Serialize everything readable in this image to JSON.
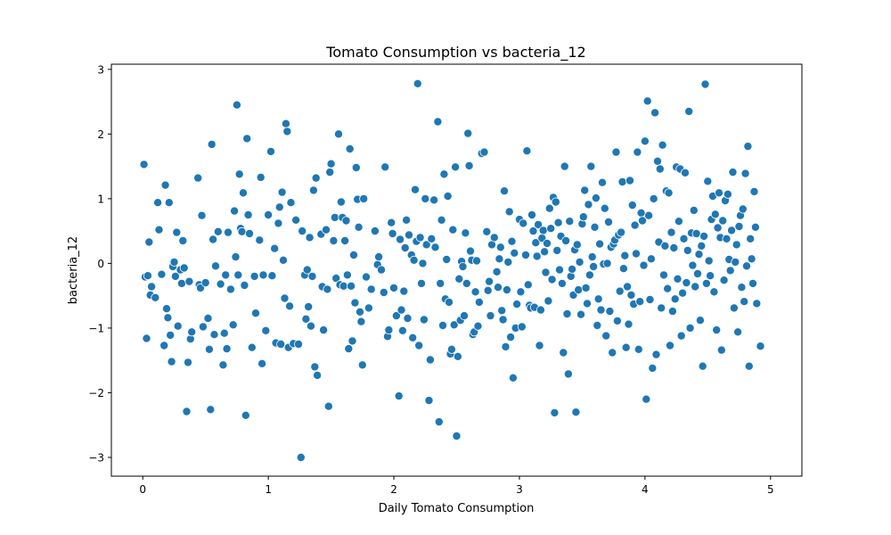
{
  "chart_data": {
    "type": "scatter",
    "title": "Tomato Consumption vs bacteria_12",
    "xlabel": "Daily Tomato Consumption",
    "ylabel": "bacteria_12",
    "xlim": [
      -0.25,
      5.25
    ],
    "ylim": [
      -3.29,
      3.08
    ],
    "xticks": [
      0,
      1,
      2,
      3,
      4,
      5
    ],
    "yticks": [
      -3,
      -2,
      -1,
      0,
      1,
      2,
      3
    ],
    "xtick_labels": [
      "0",
      "1",
      "2",
      "3",
      "4",
      "5"
    ],
    "ytick_labels": [
      "−3",
      "−2",
      "−1",
      "0",
      "1",
      "2",
      "3"
    ],
    "grid": false,
    "point_color": "#1f77b4",
    "point_edge_color": "#ffffff",
    "points": [
      [
        0.01,
        1.53
      ],
      [
        0.02,
        -0.21
      ],
      [
        0.03,
        -1.16
      ],
      [
        0.04,
        -0.19
      ],
      [
        0.05,
        0.33
      ],
      [
        0.06,
        -0.49
      ],
      [
        0.07,
        -0.36
      ],
      [
        0.1,
        -0.53
      ],
      [
        0.12,
        0.94
      ],
      [
        0.13,
        0.52
      ],
      [
        0.15,
        -0.17
      ],
      [
        0.17,
        -1.27
      ],
      [
        0.18,
        1.21
      ],
      [
        0.19,
        -0.7
      ],
      [
        0.2,
        -0.84
      ],
      [
        0.21,
        0.94
      ],
      [
        0.22,
        -1.11
      ],
      [
        0.23,
        -1.52
      ],
      [
        0.24,
        -0.05
      ],
      [
        0.25,
        0.02
      ],
      [
        0.26,
        -0.2
      ],
      [
        0.27,
        0.48
      ],
      [
        0.28,
        -0.97
      ],
      [
        0.3,
        -0.1
      ],
      [
        0.31,
        -0.31
      ],
      [
        0.32,
        0.35
      ],
      [
        0.33,
        -0.07
      ],
      [
        0.35,
        -2.29
      ],
      [
        0.36,
        -1.53
      ],
      [
        0.37,
        -0.28
      ],
      [
        0.38,
        -1.17
      ],
      [
        0.39,
        -1.06
      ],
      [
        0.44,
        1.32
      ],
      [
        0.45,
        -0.33
      ],
      [
        0.46,
        -0.38
      ],
      [
        0.47,
        0.74
      ],
      [
        0.48,
        -0.98
      ],
      [
        0.5,
        -0.3
      ],
      [
        0.52,
        -0.85
      ],
      [
        0.53,
        -1.33
      ],
      [
        0.54,
        -2.26
      ],
      [
        0.55,
        1.84
      ],
      [
        0.56,
        0.37
      ],
      [
        0.57,
        -1.1
      ],
      [
        0.58,
        -0.04
      ],
      [
        0.6,
        0.49
      ],
      [
        0.62,
        -0.32
      ],
      [
        0.64,
        -1.57
      ],
      [
        0.65,
        -1.08
      ],
      [
        0.66,
        -0.18
      ],
      [
        0.67,
        -1.32
      ],
      [
        0.68,
        0.48
      ],
      [
        0.7,
        -0.4
      ],
      [
        0.72,
        -0.95
      ],
      [
        0.73,
        0.81
      ],
      [
        0.74,
        0.1
      ],
      [
        0.75,
        2.45
      ],
      [
        0.76,
        -0.18
      ],
      [
        0.77,
        1.38
      ],
      [
        0.78,
        0.54
      ],
      [
        0.79,
        0.49
      ],
      [
        0.8,
        1.09
      ],
      [
        0.81,
        -0.34
      ],
      [
        0.82,
        -2.35
      ],
      [
        0.83,
        1.93
      ],
      [
        0.84,
        0.75
      ],
      [
        0.85,
        0.46
      ],
      [
        0.87,
        -1.3
      ],
      [
        0.89,
        -0.2
      ],
      [
        0.9,
        -0.77
      ],
      [
        0.93,
        0.36
      ],
      [
        0.94,
        1.33
      ],
      [
        0.95,
        -1.55
      ],
      [
        0.96,
        -0.18
      ],
      [
        0.98,
        -1.04
      ],
      [
        1.0,
        0.75
      ],
      [
        1.02,
        1.73
      ],
      [
        1.03,
        -0.19
      ],
      [
        1.05,
        0.23
      ],
      [
        1.06,
        -1.23
      ],
      [
        1.08,
        0.62
      ],
      [
        1.09,
        0.87
      ],
      [
        1.1,
        -1.25
      ],
      [
        1.11,
        1.1
      ],
      [
        1.12,
        0.05
      ],
      [
        1.13,
        -0.54
      ],
      [
        1.14,
        2.16
      ],
      [
        1.15,
        2.04
      ],
      [
        1.16,
        -1.3
      ],
      [
        1.17,
        -0.66
      ],
      [
        1.18,
        0.94
      ],
      [
        1.2,
        -1.24
      ],
      [
        1.22,
        0.67
      ],
      [
        1.24,
        -1.25
      ],
      [
        1.26,
        -3.0
      ],
      [
        1.27,
        0.5
      ],
      [
        1.29,
        -0.18
      ],
      [
        1.3,
        -0.86
      ],
      [
        1.31,
        -0.1
      ],
      [
        1.32,
        -0.67
      ],
      [
        1.33,
        0.4
      ],
      [
        1.34,
        -0.97
      ],
      [
        1.35,
        -0.2
      ],
      [
        1.36,
        1.13
      ],
      [
        1.37,
        -1.6
      ],
      [
        1.38,
        1.32
      ],
      [
        1.39,
        -1.73
      ],
      [
        1.42,
        0.45
      ],
      [
        1.43,
        -0.36
      ],
      [
        1.44,
        -1.03
      ],
      [
        1.46,
        0.52
      ],
      [
        1.47,
        -0.4
      ],
      [
        1.48,
        -2.21
      ],
      [
        1.49,
        1.41
      ],
      [
        1.5,
        1.54
      ],
      [
        1.52,
        0.35
      ],
      [
        1.53,
        0.71
      ],
      [
        1.54,
        -0.23
      ],
      [
        1.56,
        2.0
      ],
      [
        1.57,
        -0.33
      ],
      [
        1.58,
        0.95
      ],
      [
        1.59,
        0.71
      ],
      [
        1.6,
        -0.35
      ],
      [
        1.61,
        0.35
      ],
      [
        1.62,
        0.66
      ],
      [
        1.63,
        -0.18
      ],
      [
        1.64,
        -1.32
      ],
      [
        1.65,
        1.77
      ],
      [
        1.66,
        -0.35
      ],
      [
        1.67,
        -1.2
      ],
      [
        1.68,
        0.13
      ],
      [
        1.69,
        -0.61
      ],
      [
        1.7,
        1.48
      ],
      [
        1.71,
        0.99
      ],
      [
        1.72,
        0.56
      ],
      [
        1.73,
        -0.75
      ],
      [
        1.74,
        -0.9
      ],
      [
        1.75,
        -1.57
      ],
      [
        1.76,
        1.0
      ],
      [
        1.78,
        -0.21
      ],
      [
        1.8,
        -0.69
      ],
      [
        1.82,
        -0.4
      ],
      [
        1.85,
        0.5
      ],
      [
        1.87,
        -0.02
      ],
      [
        1.88,
        0.1
      ],
      [
        1.9,
        -0.1
      ],
      [
        1.92,
        -0.45
      ],
      [
        1.93,
        1.49
      ],
      [
        1.95,
        -1.13
      ],
      [
        1.96,
        -1.03
      ],
      [
        1.98,
        0.63
      ],
      [
        1.99,
        0.46
      ],
      [
        2.0,
        -0.38
      ],
      [
        2.02,
        -0.81
      ],
      [
        2.04,
        -2.05
      ],
      [
        2.05,
        0.37
      ],
      [
        2.06,
        -0.72
      ],
      [
        2.07,
        -1.04
      ],
      [
        2.08,
        -0.43
      ],
      [
        2.09,
        0.24
      ],
      [
        2.1,
        0.67
      ],
      [
        2.11,
        -0.85
      ],
      [
        2.12,
        0.44
      ],
      [
        2.14,
        0.13
      ],
      [
        2.15,
        -1.15
      ],
      [
        2.16,
        0.05
      ],
      [
        2.17,
        1.14
      ],
      [
        2.18,
        0.34
      ],
      [
        2.19,
        2.78
      ],
      [
        2.2,
        -1.27
      ],
      [
        2.21,
        0.4
      ],
      [
        2.22,
        -0.31
      ],
      [
        2.23,
        0.0
      ],
      [
        2.24,
        -0.87
      ],
      [
        2.25,
        1.0
      ],
      [
        2.26,
        0.29
      ],
      [
        2.28,
        -2.12
      ],
      [
        2.29,
        -1.49
      ],
      [
        2.3,
        0.38
      ],
      [
        2.32,
        0.98
      ],
      [
        2.33,
        0.25
      ],
      [
        2.35,
        2.19
      ],
      [
        2.36,
        -2.45
      ],
      [
        2.37,
        -0.31
      ],
      [
        2.38,
        0.67
      ],
      [
        2.39,
        -0.96
      ],
      [
        2.4,
        1.38
      ],
      [
        2.41,
        -0.55
      ],
      [
        2.42,
        0.06
      ],
      [
        2.43,
        1.04
      ],
      [
        2.44,
        -0.6
      ],
      [
        2.45,
        -1.4
      ],
      [
        2.46,
        -1.33
      ],
      [
        2.47,
        0.52
      ],
      [
        2.48,
        -0.95
      ],
      [
        2.49,
        1.49
      ],
      [
        2.5,
        -2.67
      ],
      [
        2.51,
        -1.44
      ],
      [
        2.52,
        -0.24
      ],
      [
        2.53,
        -0.88
      ],
      [
        2.54,
        0.03
      ],
      [
        2.55,
        -0.05
      ],
      [
        2.56,
        -0.81
      ],
      [
        2.57,
        0.47
      ],
      [
        2.58,
        -0.31
      ],
      [
        2.59,
        2.01
      ],
      [
        2.6,
        1.51
      ],
      [
        2.61,
        0.19
      ],
      [
        2.62,
        0.05
      ],
      [
        2.63,
        -1.1
      ],
      [
        2.64,
        -1.06
      ],
      [
        2.65,
        -0.44
      ],
      [
        2.66,
        0.04
      ],
      [
        2.67,
        -0.97
      ],
      [
        2.68,
        -0.6
      ],
      [
        2.7,
        1.7
      ],
      [
        2.72,
        1.72
      ],
      [
        2.74,
        0.49
      ],
      [
        2.75,
        -0.42
      ],
      [
        2.76,
        -0.28
      ],
      [
        2.77,
        -0.81
      ],
      [
        2.78,
        0.29
      ],
      [
        2.8,
        0.4
      ],
      [
        2.82,
        -0.13
      ],
      [
        2.83,
        -0.37
      ],
      [
        2.84,
        0.07
      ],
      [
        2.85,
        0.25
      ],
      [
        2.86,
        -0.73
      ],
      [
        2.87,
        -0.87
      ],
      [
        2.88,
        1.12
      ],
      [
        2.89,
        -1.29
      ],
      [
        2.9,
        -0.41
      ],
      [
        2.91,
        0.02
      ],
      [
        2.92,
        0.8
      ],
      [
        2.93,
        -1.14
      ],
      [
        2.94,
        0.34
      ],
      [
        2.95,
        -1.77
      ],
      [
        2.96,
        0.16
      ],
      [
        2.97,
        -1.0
      ],
      [
        2.98,
        -0.63
      ],
      [
        3.0,
        0.68
      ],
      [
        3.01,
        -0.44
      ],
      [
        3.02,
        -0.98
      ],
      [
        3.03,
        0.62
      ],
      [
        3.05,
        0.13
      ],
      [
        3.06,
        1.74
      ],
      [
        3.07,
        -0.33
      ],
      [
        3.08,
        -0.65
      ],
      [
        3.09,
        -0.69
      ],
      [
        3.1,
        0.75
      ],
      [
        3.11,
        0.5
      ],
      [
        3.12,
        -0.68
      ],
      [
        3.13,
        0.32
      ],
      [
        3.14,
        0.11
      ],
      [
        3.15,
        0.6
      ],
      [
        3.16,
        -1.27
      ],
      [
        3.17,
        -0.72
      ],
      [
        3.18,
        0.39
      ],
      [
        3.19,
        0.51
      ],
      [
        3.2,
        0.18
      ],
      [
        3.21,
        -0.14
      ],
      [
        3.22,
        0.31
      ],
      [
        3.23,
        -0.58
      ],
      [
        3.24,
        0.85
      ],
      [
        3.25,
        0.54
      ],
      [
        3.26,
        -0.25
      ],
      [
        3.27,
        1.02
      ],
      [
        3.28,
        -2.31
      ],
      [
        3.29,
        0.95
      ],
      [
        3.3,
        0.2
      ],
      [
        3.31,
        0.63
      ],
      [
        3.32,
        -0.1
      ],
      [
        3.33,
        0.42
      ],
      [
        3.34,
        -0.31
      ],
      [
        3.35,
        -1.38
      ],
      [
        3.36,
        1.5
      ],
      [
        3.37,
        0.35
      ],
      [
        3.38,
        -0.78
      ],
      [
        3.39,
        -1.71
      ],
      [
        3.4,
        0.65
      ],
      [
        3.41,
        -0.2
      ],
      [
        3.42,
        -0.09
      ],
      [
        3.43,
        -0.49
      ],
      [
        3.44,
        0.21
      ],
      [
        3.45,
        -2.3
      ],
      [
        3.46,
        0.29
      ],
      [
        3.47,
        -0.41
      ],
      [
        3.48,
        0.02
      ],
      [
        3.49,
        -0.79
      ],
      [
        3.5,
        0.61
      ],
      [
        3.51,
        0.72
      ],
      [
        3.52,
        1.13
      ],
      [
        3.53,
        -0.38
      ],
      [
        3.54,
        -0.62
      ],
      [
        3.55,
        0.91
      ],
      [
        3.56,
        -0.18
      ],
      [
        3.57,
        1.5
      ],
      [
        3.58,
        0.1
      ],
      [
        3.59,
        -0.05
      ],
      [
        3.6,
        0.56
      ],
      [
        3.61,
        1.01
      ],
      [
        3.62,
        -0.96
      ],
      [
        3.63,
        -0.55
      ],
      [
        3.64,
        0.3
      ],
      [
        3.65,
        -0.72
      ],
      [
        3.66,
        1.25
      ],
      [
        3.67,
        -0.01
      ],
      [
        3.68,
        0.85
      ],
      [
        3.69,
        -1.12
      ],
      [
        3.7,
        0.0
      ],
      [
        3.71,
        0.64
      ],
      [
        3.72,
        -0.74
      ],
      [
        3.73,
        0.25
      ],
      [
        3.74,
        -1.38
      ],
      [
        3.75,
        0.3
      ],
      [
        3.76,
        0.36
      ],
      [
        3.77,
        1.72
      ],
      [
        3.78,
        -0.89
      ],
      [
        3.79,
        0.44
      ],
      [
        3.8,
        -0.43
      ],
      [
        3.81,
        0.48
      ],
      [
        3.82,
        1.26
      ],
      [
        3.83,
        -0.08
      ],
      [
        3.84,
        0.12
      ],
      [
        3.85,
        -1.3
      ],
      [
        3.86,
        -0.36
      ],
      [
        3.87,
        -0.94
      ],
      [
        3.88,
        1.28
      ],
      [
        3.89,
        -0.49
      ],
      [
        3.9,
        0.9
      ],
      [
        3.91,
        -0.63
      ],
      [
        3.92,
        0.59
      ],
      [
        3.93,
        0.15
      ],
      [
        3.94,
        1.72
      ],
      [
        3.95,
        -1.33
      ],
      [
        3.96,
        -0.59
      ],
      [
        3.97,
        0.78
      ],
      [
        3.98,
        0.66
      ],
      [
        3.99,
        -0.03
      ],
      [
        4.0,
        1.89
      ],
      [
        4.01,
        -2.1
      ],
      [
        4.02,
        2.51
      ],
      [
        4.03,
        0.74
      ],
      [
        4.04,
        -0.56
      ],
      [
        4.05,
        0.07
      ],
      [
        4.06,
        -1.62
      ],
      [
        4.07,
        1.0
      ],
      [
        4.08,
        2.33
      ],
      [
        4.09,
        -1.41
      ],
      [
        4.1,
        1.58
      ],
      [
        4.11,
        0.33
      ],
      [
        4.12,
        1.46
      ],
      [
        4.13,
        -0.69
      ],
      [
        4.14,
        1.83
      ],
      [
        4.15,
        -0.18
      ],
      [
        4.16,
        0.27
      ],
      [
        4.17,
        1.12
      ],
      [
        4.18,
        -0.39
      ],
      [
        4.19,
        1.09
      ],
      [
        4.2,
        -1.27
      ],
      [
        4.21,
        0.48
      ],
      [
        4.22,
        -0.74
      ],
      [
        4.23,
        0.24
      ],
      [
        4.24,
        -0.55
      ],
      [
        4.25,
        1.49
      ],
      [
        4.26,
        -0.24
      ],
      [
        4.27,
        0.65
      ],
      [
        4.28,
        1.46
      ],
      [
        4.29,
        -1.12
      ],
      [
        4.3,
        -0.46
      ],
      [
        4.31,
        0.38
      ],
      [
        4.32,
        1.4
      ],
      [
        4.33,
        -0.3
      ],
      [
        4.34,
        0.2
      ],
      [
        4.35,
        2.35
      ],
      [
        4.36,
        -1.0
      ],
      [
        4.37,
        0.47
      ],
      [
        4.38,
        -0.03
      ],
      [
        4.39,
        0.82
      ],
      [
        4.4,
        -0.36
      ],
      [
        4.41,
        0.46
      ],
      [
        4.42,
        -0.16
      ],
      [
        4.43,
        0.14
      ],
      [
        4.44,
        -0.88
      ],
      [
        4.45,
        0.27
      ],
      [
        4.46,
        -1.59
      ],
      [
        4.47,
        0.42
      ],
      [
        4.48,
        2.77
      ],
      [
        4.49,
        -0.31
      ],
      [
        4.5,
        1.27
      ],
      [
        4.51,
        0.04
      ],
      [
        4.52,
        -0.19
      ],
      [
        4.53,
        0.68
      ],
      [
        4.54,
        1.04
      ],
      [
        4.55,
        -0.44
      ],
      [
        4.56,
        0.76
      ],
      [
        4.57,
        -1.03
      ],
      [
        4.58,
        0.55
      ],
      [
        4.59,
        1.09
      ],
      [
        4.6,
        0.4
      ],
      [
        4.61,
        -1.34
      ],
      [
        4.62,
        0.66
      ],
      [
        4.63,
        -0.26
      ],
      [
        4.64,
        0.97
      ],
      [
        4.65,
        0.38
      ],
      [
        4.66,
        1.07
      ],
      [
        4.67,
        0.06
      ],
      [
        4.68,
        -0.11
      ],
      [
        4.69,
        0.51
      ],
      [
        4.7,
        1.41
      ],
      [
        4.71,
        -0.69
      ],
      [
        4.72,
        0.02
      ],
      [
        4.73,
        0.29
      ],
      [
        4.74,
        -1.06
      ],
      [
        4.75,
        0.57
      ],
      [
        4.76,
        0.74
      ],
      [
        4.77,
        -0.37
      ],
      [
        4.78,
        0.84
      ],
      [
        4.79,
        -0.59
      ],
      [
        4.8,
        1.39
      ],
      [
        4.81,
        -0.04
      ],
      [
        4.82,
        1.81
      ],
      [
        4.83,
        -1.59
      ],
      [
        4.84,
        0.38
      ],
      [
        4.85,
        0.07
      ],
      [
        4.86,
        -0.31
      ],
      [
        4.87,
        1.11
      ],
      [
        4.88,
        0.56
      ],
      [
        4.89,
        -0.62
      ],
      [
        4.92,
        -1.28
      ]
    ]
  }
}
